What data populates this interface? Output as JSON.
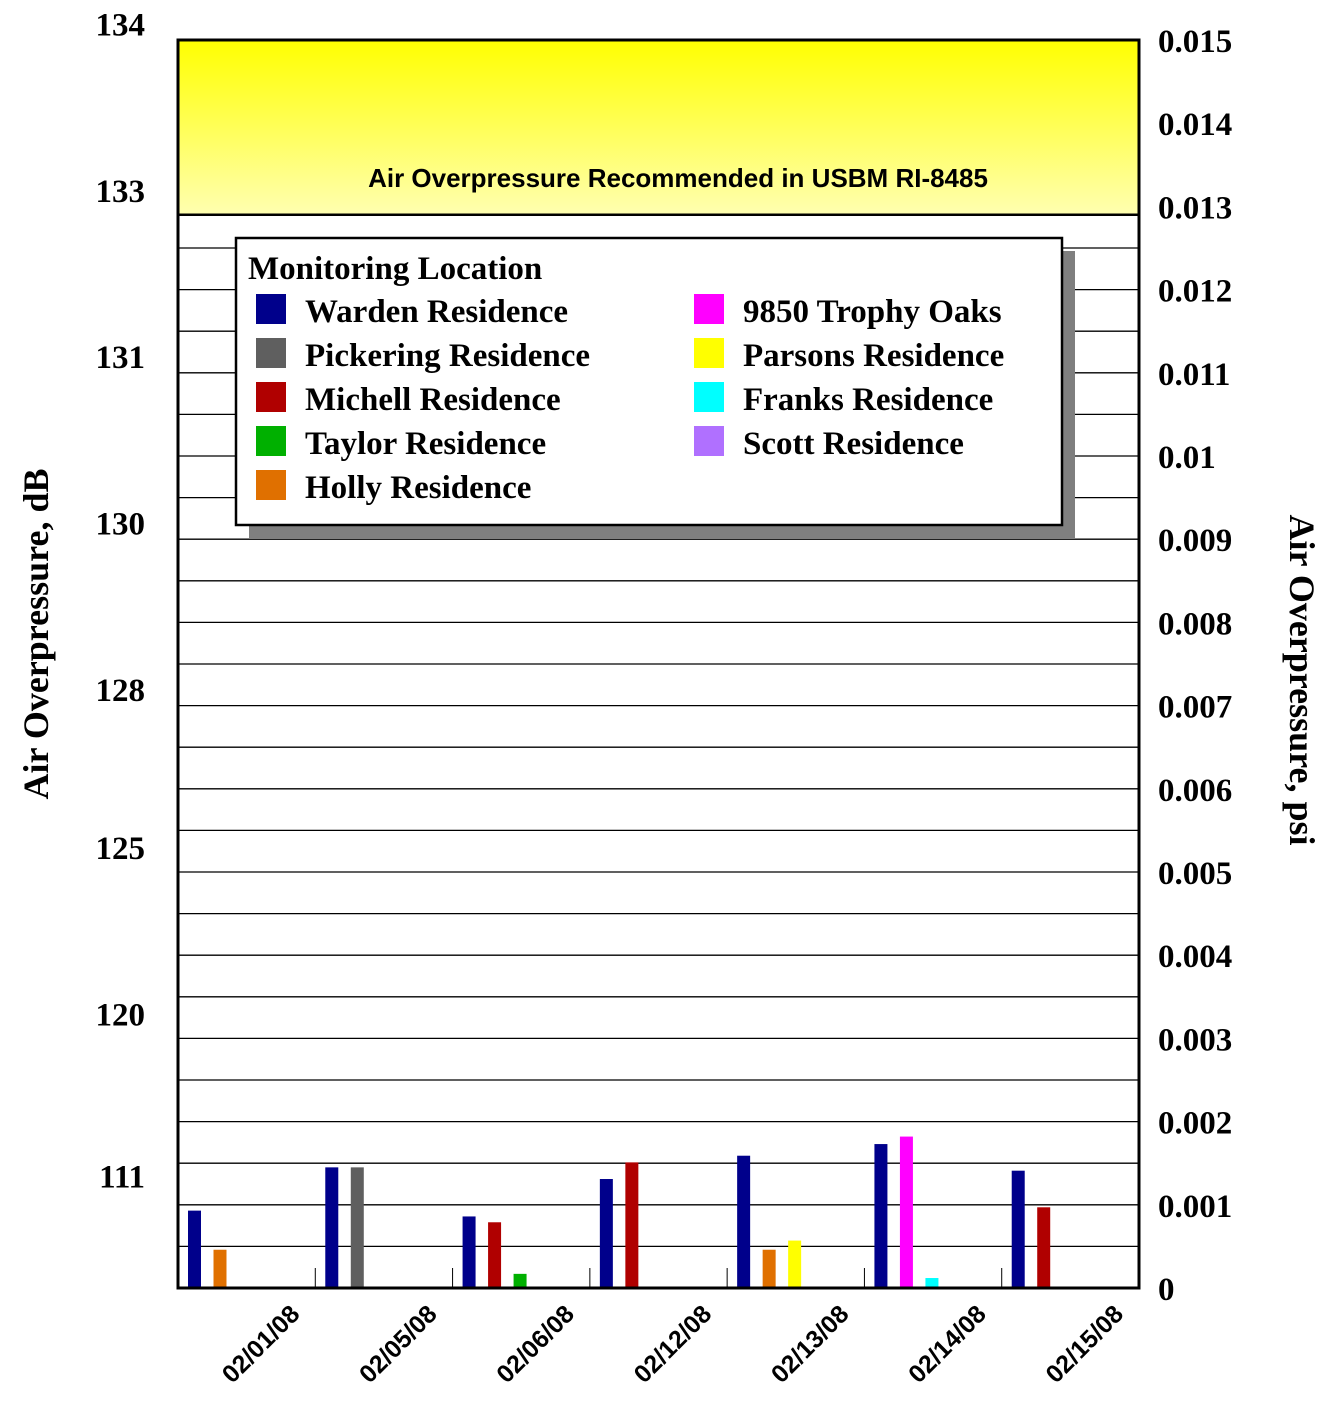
{
  "chart_data": {
    "type": "bar",
    "categories": [
      "02/01/08",
      "02/05/08",
      "02/06/08",
      "02/12/08",
      "02/13/08",
      "02/14/08",
      "02/15/08"
    ],
    "series": [
      {
        "name": "Warden Residence",
        "color": "#00008B",
        "values": [
          0.00093,
          0.00145,
          0.00086,
          0.00131,
          0.00159,
          0.00173,
          0.00141
        ]
      },
      {
        "name": "Pickering Residence",
        "color": "#5F5F5F",
        "values": [
          null,
          0.00145,
          null,
          null,
          null,
          null,
          null
        ]
      },
      {
        "name": "Michell Residence",
        "color": "#B00000",
        "values": [
          null,
          null,
          0.00079,
          0.00151,
          null,
          null,
          0.00097
        ]
      },
      {
        "name": "Taylor Residence",
        "color": "#00B000",
        "values": [
          null,
          null,
          0.00017,
          null,
          null,
          null,
          null
        ]
      },
      {
        "name": "Holly Residence",
        "color": "#E07000",
        "values": [
          0.00046,
          null,
          null,
          null,
          0.00046,
          null,
          null
        ]
      },
      {
        "name": "9850 Trophy Oaks",
        "color": "#FF00FF",
        "values": [
          null,
          null,
          null,
          null,
          null,
          0.00182,
          null
        ]
      },
      {
        "name": "Parsons Residence",
        "color": "#FFFF00",
        "values": [
          null,
          null,
          null,
          null,
          0.00057,
          null,
          null
        ]
      },
      {
        "name": "Franks Residence",
        "color": "#00FFFF",
        "values": [
          null,
          null,
          null,
          null,
          null,
          0.00012,
          null
        ]
      },
      {
        "name": "Scott Residence",
        "color": "#B070FF",
        "values": [
          null,
          null,
          null,
          null,
          null,
          null,
          null
        ]
      }
    ],
    "ylabel": "Air Overpressure, dB",
    "y2label": "Air Overpressure, psi",
    "ylim": [
      0,
      0.015
    ],
    "grid": true,
    "left_ticks": [
      "134",
      "133",
      "131",
      "130",
      "128",
      "125",
      "120",
      "111"
    ],
    "left_tick_values": [
      0.0152,
      0.0132,
      0.0112,
      0.0092,
      0.0072,
      0.0053,
      0.0033,
      0.00135
    ],
    "right_ticks": [
      "0",
      "0.001",
      "0.002",
      "0.003",
      "0.004",
      "0.005",
      "0.006",
      "0.007",
      "0.008",
      "0.009",
      "0.01",
      "0.011",
      "0.012",
      "0.013",
      "0.014",
      "0.015"
    ],
    "right_tick_values": [
      0,
      0.001,
      0.002,
      0.003,
      0.004,
      0.005,
      0.006,
      0.007,
      0.008,
      0.009,
      0.01,
      0.011,
      0.012,
      0.013,
      0.014,
      0.015
    ],
    "threshold": {
      "from": 0.0129,
      "to": 0.015,
      "label": "Air Overpressure Recommended in USBM RI-8485",
      "color_top": "#FFFF00",
      "color_bottom": "#FFFFB0"
    },
    "legend": {
      "title": "Monitoring Location",
      "placement": "top-left"
    }
  }
}
